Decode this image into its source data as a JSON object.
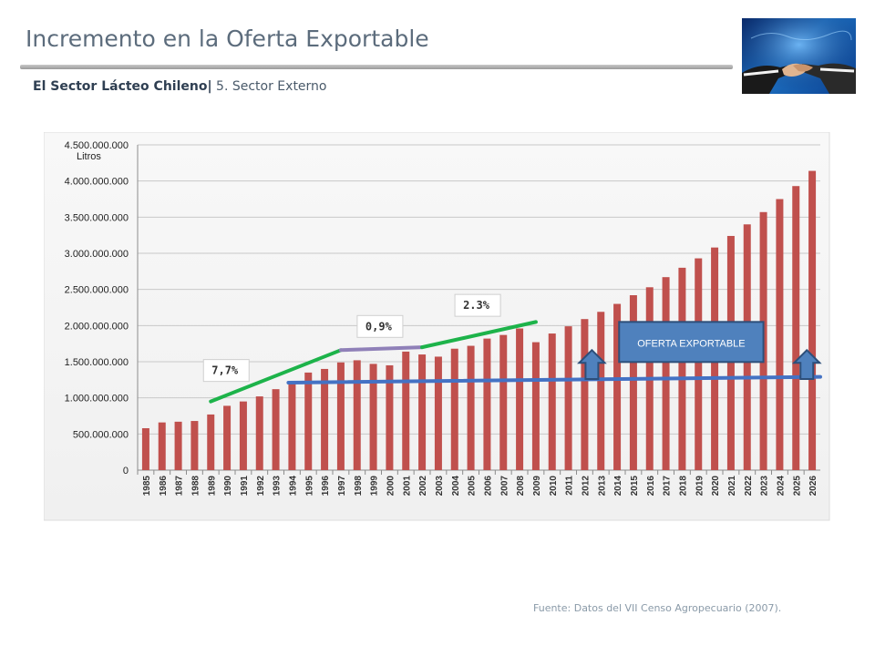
{
  "header": {
    "title": "Incremento en la Oferta Exportable",
    "subtitle_bold": "El Sector Lácteo Chileno|",
    "subtitle_rest": " 5. Sector Externo"
  },
  "footer": {
    "source": "Fuente: Datos del VII Censo Agropecuario (2007)."
  },
  "colors": {
    "bar": "#c0504d",
    "trend_green": "#1db34a",
    "trend_purple": "#8f80b8",
    "baseline_blue": "#4472c4",
    "arrow": "#4f81bd"
  },
  "icons": [
    "handshake-photo",
    "up-arrow-icon"
  ],
  "chart_data": {
    "type": "bar",
    "ylabel": "Litros",
    "ylim": [
      0,
      4500000000
    ],
    "yticks": [
      0,
      500000000,
      1000000000,
      1500000000,
      2000000000,
      2500000000,
      3000000000,
      3500000000,
      4000000000,
      4500000000
    ],
    "ytick_labels": [
      "0",
      "500.000.000",
      "1.000.000.000",
      "1.500.000.000",
      "2.000.000.000",
      "2.500.000.000",
      "3.000.000.000",
      "3.500.000.000",
      "4.000.000.000",
      "4.500.000.000"
    ],
    "grid": true,
    "categories": [
      "1985",
      "1986",
      "1987",
      "1988",
      "1989",
      "1990",
      "1991",
      "1992",
      "1993",
      "1994",
      "1995",
      "1996",
      "1997",
      "1998",
      "1999",
      "2000",
      "2001",
      "2002",
      "2003",
      "2004",
      "2005",
      "2006",
      "2007",
      "2008",
      "2009",
      "2010",
      "2011",
      "2012",
      "2013",
      "2014",
      "2015",
      "2016",
      "2017",
      "2018",
      "2019",
      "2020",
      "2021",
      "2022",
      "2023",
      "2024",
      "2025",
      "2026"
    ],
    "values": [
      580000000,
      660000000,
      670000000,
      680000000,
      770000000,
      890000000,
      950000000,
      1020000000,
      1120000000,
      1220000000,
      1350000000,
      1400000000,
      1490000000,
      1520000000,
      1470000000,
      1450000000,
      1640000000,
      1600000000,
      1570000000,
      1680000000,
      1720000000,
      1820000000,
      1870000000,
      1960000000,
      1770000000,
      1890000000,
      1990000000,
      2090000000,
      2190000000,
      2300000000,
      2420000000,
      2530000000,
      2670000000,
      2800000000,
      2930000000,
      3080000000,
      3240000000,
      3400000000,
      3570000000,
      3750000000,
      3930000000,
      4140000000
    ],
    "annotations": [
      {
        "label": "7,7%",
        "kind": "growth-line",
        "from": [
          "1989",
          950000000
        ],
        "to": [
          "1997",
          1660000000
        ],
        "color": "#1db34a"
      },
      {
        "label": "0,9%",
        "kind": "growth-line",
        "from": [
          "1997",
          1660000000
        ],
        "to": [
          "2002",
          1700000000
        ],
        "color": "#8f80b8"
      },
      {
        "label": "2.3%",
        "kind": "growth-line",
        "from": [
          "2002",
          1700000000
        ],
        "to": [
          "2009",
          2050000000
        ],
        "color": "#1db34a"
      },
      {
        "label": "",
        "kind": "baseline",
        "from": [
          "1994",
          1210000000
        ],
        "to": [
          "2026",
          1290000000
        ],
        "color": "#4472c4"
      }
    ],
    "callout": "OFERTA EXPORTABLE"
  }
}
